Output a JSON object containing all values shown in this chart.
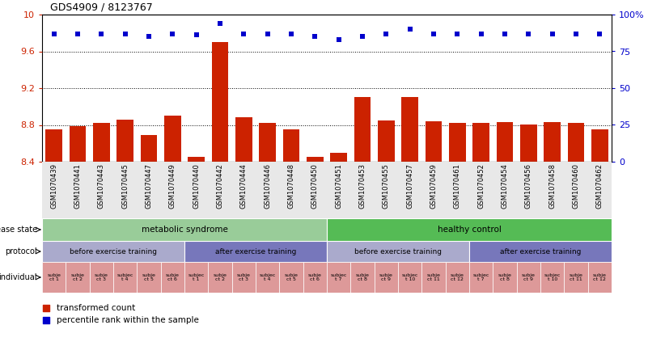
{
  "title": "GDS4909 / 8123767",
  "samples": [
    "GSM1070439",
    "GSM1070441",
    "GSM1070443",
    "GSM1070445",
    "GSM1070447",
    "GSM1070449",
    "GSM1070440",
    "GSM1070442",
    "GSM1070444",
    "GSM1070446",
    "GSM1070448",
    "GSM1070450",
    "GSM1070451",
    "GSM1070453",
    "GSM1070455",
    "GSM1070457",
    "GSM1070459",
    "GSM1070461",
    "GSM1070452",
    "GSM1070454",
    "GSM1070456",
    "GSM1070458",
    "GSM1070460",
    "GSM1070462"
  ],
  "bar_values": [
    8.75,
    8.79,
    8.82,
    8.86,
    8.69,
    8.9,
    8.45,
    9.7,
    8.88,
    8.82,
    8.75,
    8.45,
    8.5,
    9.1,
    8.85,
    9.1,
    8.84,
    8.82,
    8.82,
    8.83,
    8.8,
    8.83,
    8.82,
    8.75
  ],
  "percentile_values": [
    87,
    87,
    87,
    87,
    85,
    87,
    86,
    94,
    87,
    87,
    87,
    85,
    83,
    85,
    87,
    90,
    87,
    87,
    87,
    87,
    87,
    87,
    87,
    87
  ],
  "ylim_left": [
    8.4,
    10.0
  ],
  "ylim_right": [
    0,
    100
  ],
  "yticks_left": [
    8.4,
    8.8,
    9.2,
    9.6,
    10.0
  ],
  "ytick_labels_left": [
    "8.4",
    "8.8",
    "9.2",
    "9.6",
    "10"
  ],
  "yticks_right": [
    0,
    25,
    50,
    75,
    100
  ],
  "ytick_labels_right": [
    "0",
    "25",
    "50",
    "75",
    "100%"
  ],
  "bar_color": "#cc2200",
  "point_color": "#0000cc",
  "disease_state": [
    {
      "label": "metabolic syndrome",
      "start": 0,
      "end": 12,
      "color": "#99cc99"
    },
    {
      "label": "healthy control",
      "start": 12,
      "end": 24,
      "color": "#55bb55"
    }
  ],
  "protocol": [
    {
      "label": "before exercise training",
      "start": 0,
      "end": 6,
      "color": "#aaaacc"
    },
    {
      "label": "after exercise training",
      "start": 6,
      "end": 12,
      "color": "#7777bb"
    },
    {
      "label": "before exercise training",
      "start": 12,
      "end": 18,
      "color": "#aaaacc"
    },
    {
      "label": "after exercise training",
      "start": 18,
      "end": 24,
      "color": "#7777bb"
    }
  ],
  "ind_labels": [
    "subje\nct 1",
    "subje\nct 2",
    "subje\nct 3",
    "subjec\nt 4",
    "subje\nct 5",
    "subje\nct 6",
    "subjec\nt 1",
    "subje\nct 2",
    "subje\nct 3",
    "subjec\nt 4",
    "subje\nct 5",
    "subje\nct 6",
    "subjec\nt 7",
    "subje\nct 8",
    "subje\nct 9",
    "subjec\nt 10",
    "subje\nct 11",
    "subje\nct 12",
    "subjec\nt 7",
    "subje\nct 8",
    "subje\nct 9",
    "subjec\nt 10",
    "subje\nct 11",
    "subje\nct 12"
  ],
  "individual_color": "#dd9999",
  "legend_items": [
    {
      "label": "transformed count",
      "color": "#cc2200"
    },
    {
      "label": "percentile rank within the sample",
      "color": "#0000cc"
    }
  ]
}
